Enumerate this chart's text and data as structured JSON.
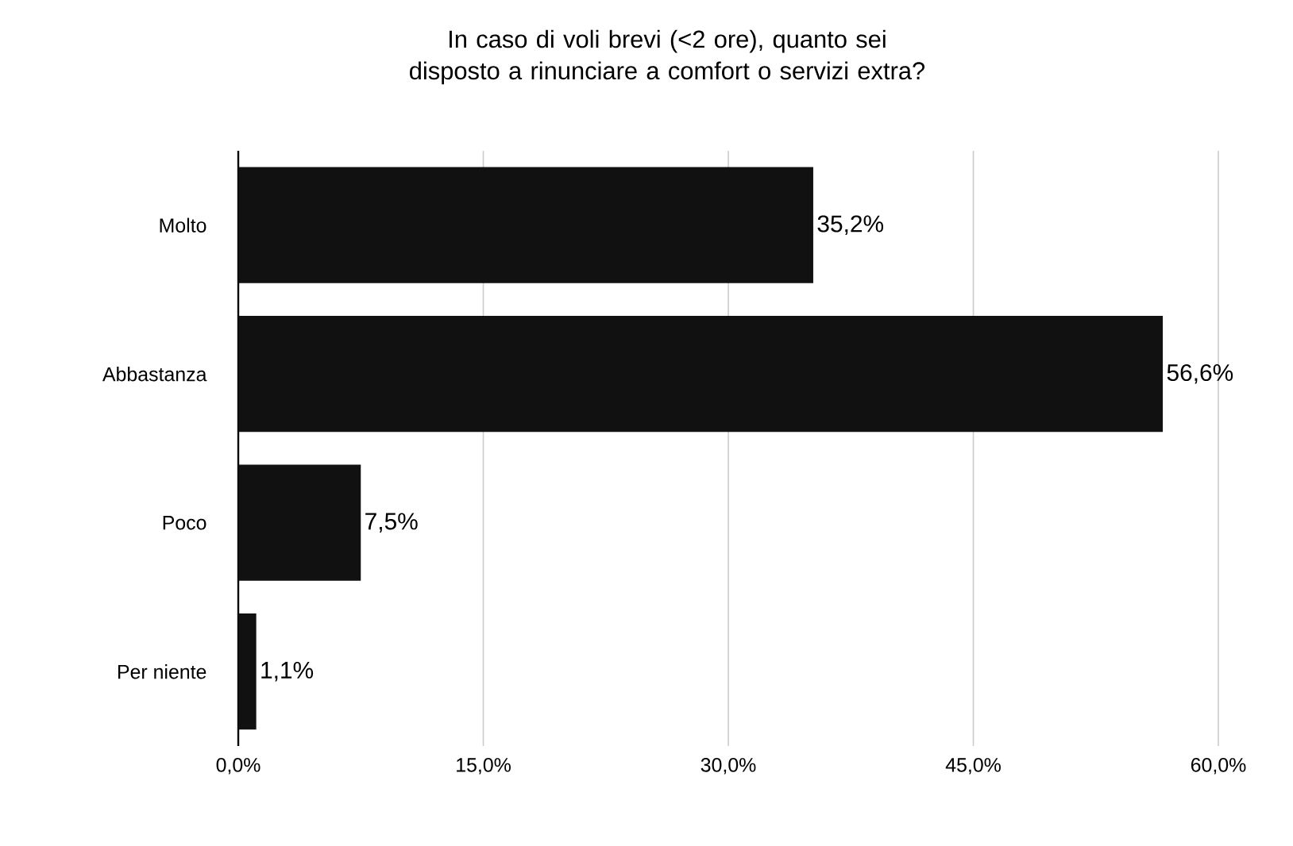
{
  "chart_data": {
    "type": "bar",
    "orientation": "horizontal",
    "title": "In caso di voli brevi (<2 ore), quanto sei disposto a rinunciare a comfort o servizi extra?",
    "categories": [
      "Molto",
      "Abbastanza",
      "Poco",
      "Per niente"
    ],
    "values": [
      35.2,
      56.6,
      7.5,
      1.1
    ],
    "value_labels": [
      "35,2%",
      "56,6%",
      "7,5%",
      "1,1%"
    ],
    "color": "#111111",
    "xlim": [
      0,
      60
    ],
    "xticks": [
      {
        "value": 0,
        "label": "0,0%"
      },
      {
        "value": 15,
        "label": "15,0%"
      },
      {
        "value": 30,
        "label": "30,0%"
      },
      {
        "value": 45,
        "label": "45,0%"
      },
      {
        "value": 60,
        "label": "60,0%"
      }
    ],
    "grid": "x"
  }
}
